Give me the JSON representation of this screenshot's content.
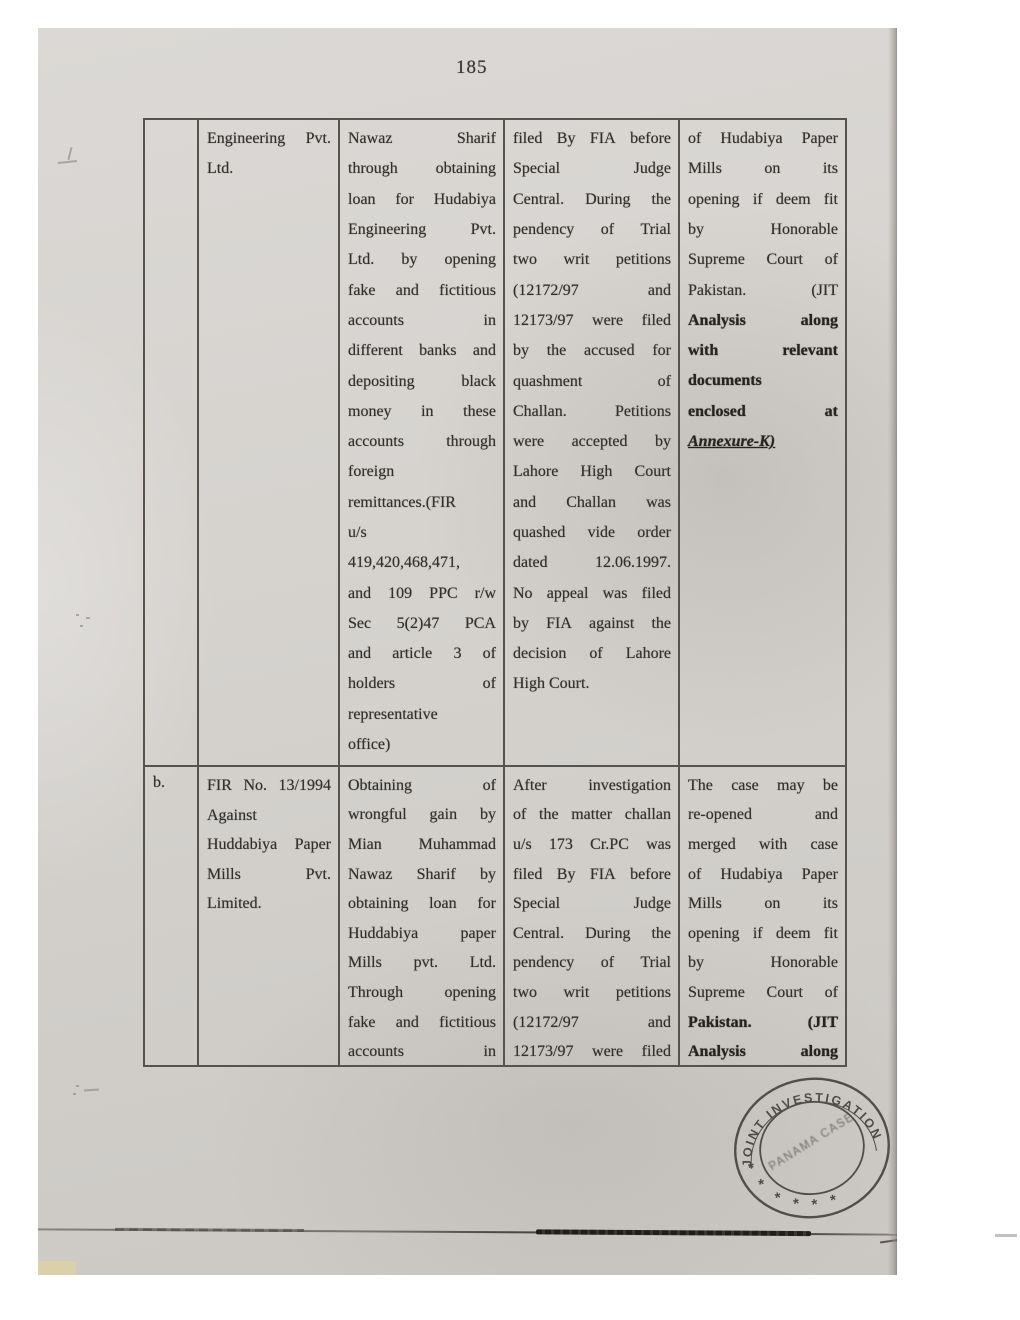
{
  "page": {
    "number": "185"
  },
  "colors": {
    "paper": "#d5d2ce",
    "ink": "#332f2a",
    "table_line": "#57524b",
    "stamp_ink": "#474440"
  },
  "stamp": {
    "ring_text": "JOINT INVESTIGATION TE",
    "center_text": "PANAMA CASE",
    "star_glyph": "*"
  },
  "table": {
    "rows": [
      {
        "label": "",
        "cells": [
          {
            "lines": [
              "Engineering Pvt.",
              "Ltd."
            ],
            "last_plain": true
          },
          {
            "lines": [
              "Nawaz Sharif",
              "through obtaining",
              "loan for Hudabiya",
              "Engineering Pvt.",
              "Ltd. by opening",
              "fake and fictitious",
              "accounts in",
              "different banks and",
              "depositing black",
              "money in these",
              "accounts through",
              "foreign",
              "remittances.(FIR",
              "u/s",
              "419,420,468,471,",
              "and 109 PPC r/w",
              "Sec 5(2)47 PCA",
              "and article 3 of",
              "holders of",
              "representative",
              "office)"
            ],
            "last_plain": true
          },
          {
            "lines": [
              "filed By FIA before",
              "Special Judge",
              "Central. During the",
              "pendency of Trial",
              "two writ petitions",
              "(12172/97 and",
              "12173/97 were filed",
              "by the accused for",
              "quashment of",
              "Challan. Petitions",
              "were accepted by",
              "Lahore High Court",
              "and Challan was",
              "quashed vide order",
              "dated 12.06.1997.",
              "No appeal was filed",
              "by FIA against the",
              "decision of Lahore",
              "High Court."
            ],
            "last_plain": true
          },
          {
            "lines": [
              "of Hudabiya Paper",
              "Mills on its",
              "opening if deem fit",
              "by Honorable",
              "Supreme Court of",
              "Pakistan. (JIT",
              "Analysis along",
              "with relevant",
              "documents",
              "enclosed at",
              "Annexure-K)"
            ],
            "last_plain": true,
            "em_last": true,
            "heavy_from": 6
          }
        ]
      },
      {
        "label": "b.",
        "cells": [
          {
            "lines": [
              "FIR No. 13/1994",
              "Against",
              "Huddabiya Paper",
              "Mills Pvt.",
              "Limited."
            ],
            "last_plain": true
          },
          {
            "lines": [
              "Obtaining of",
              "wrongful gain by",
              "Mian Muhammad",
              "Nawaz Sharif by",
              "obtaining loan for",
              "Huddabiya paper",
              "Mills pvt. Ltd.",
              "Through opening",
              "fake and fictitious",
              "accounts in"
            ]
          },
          {
            "lines": [
              "After investigation",
              "of the matter challan",
              "u/s 173 Cr.PC was",
              "filed By FIA before",
              "Special Judge",
              "Central. During the",
              "pendency of Trial",
              "two writ petitions",
              "(12172/97 and",
              "12173/97 were filed"
            ]
          },
          {
            "lines": [
              "The case may be",
              "re-opened and",
              "merged with case",
              "of Hudabiya Paper",
              "Mills on its",
              "opening if deem fit",
              "by Honorable",
              "Supreme Court of",
              "Pakistan. (JIT",
              "Analysis along"
            ],
            "heavy_from": 8
          }
        ]
      }
    ]
  }
}
